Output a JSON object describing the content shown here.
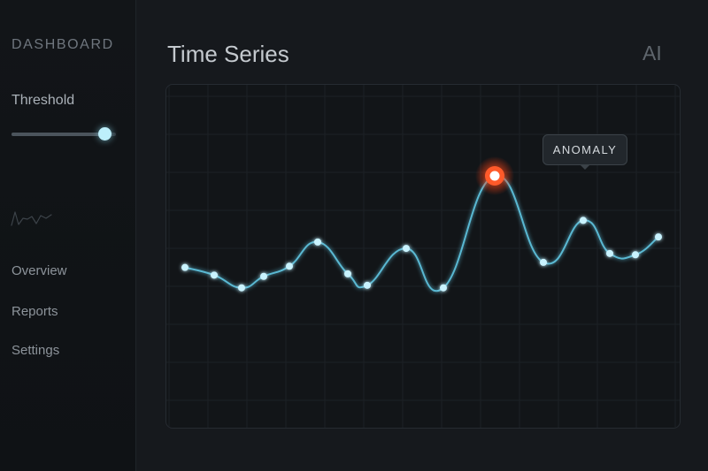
{
  "sidebar": {
    "brand": "DASHBOARD",
    "threshold": {
      "label": "Threshold",
      "value_fraction": 0.9
    },
    "nav": [
      {
        "label": "Overview"
      },
      {
        "label": "Reports"
      },
      {
        "label": "Settings"
      }
    ],
    "logo_icon": "waveform-icon"
  },
  "header": {
    "title": "Time Series",
    "badge": "AI"
  },
  "chart_data": {
    "type": "line",
    "title": "",
    "xlabel": "",
    "ylabel": "",
    "grid": true,
    "values": [
      0.28,
      0.22,
      0.12,
      0.21,
      0.29,
      0.48,
      0.23,
      0.14,
      0.43,
      0.12,
      1.0,
      0.32,
      0.65,
      0.39,
      0.38,
      0.52
    ],
    "anomaly_index": 10,
    "annotation": "ANOMALY",
    "colors": {
      "line": "#5fc4e0",
      "point": "#c9f3ff",
      "anomaly": "#ff5a2a"
    }
  }
}
